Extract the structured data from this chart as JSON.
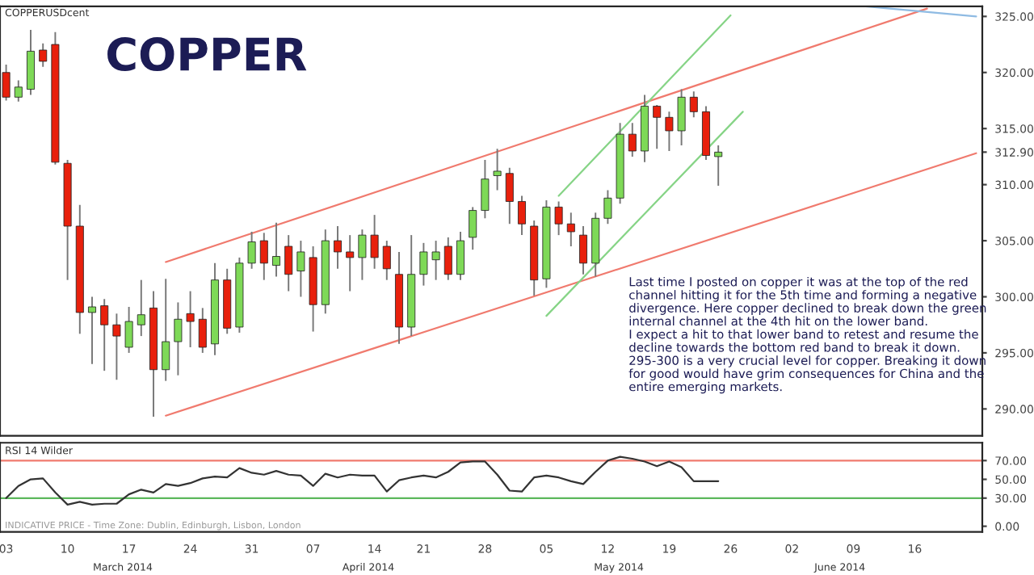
{
  "chart_data": [
    {
      "type": "candlestick",
      "title": "COPPER",
      "tick_labels": "y",
      "categories": [
        "03",
        null,
        null,
        null,
        null,
        "10",
        null,
        null,
        null,
        null,
        "17",
        null,
        null,
        null,
        null,
        "24",
        null,
        null,
        null,
        null,
        "31",
        null,
        null,
        null,
        null,
        "07",
        null,
        null,
        null,
        null,
        "14",
        null,
        null,
        null,
        "21",
        null,
        null,
        null,
        null,
        "28",
        null,
        null,
        null,
        null,
        "05",
        null,
        null,
        null,
        null,
        "12",
        null,
        null,
        null,
        null,
        "19",
        null,
        null,
        null,
        null,
        "26",
        null,
        null,
        null,
        null,
        "02",
        null,
        null,
        null,
        null,
        "09",
        null,
        null,
        null,
        null,
        "16",
        null,
        null,
        null,
        null,
        null
      ],
      "ohlc": [
        [
          320.0,
          320.7,
          317.5,
          317.8
        ],
        [
          317.8,
          319.3,
          317.4,
          318.7
        ],
        [
          318.5,
          323.8,
          318.0,
          321.9
        ],
        [
          322.0,
          322.6,
          320.5,
          321.0
        ],
        [
          322.5,
          323.6,
          311.8,
          312.0
        ],
        [
          311.9,
          312.2,
          301.5,
          306.3
        ],
        [
          306.3,
          308.2,
          296.7,
          298.6
        ],
        [
          298.6,
          300.0,
          294.0,
          299.1
        ],
        [
          299.2,
          299.8,
          293.4,
          297.5
        ],
        [
          297.5,
          298.5,
          292.6,
          296.5
        ],
        [
          295.5,
          299.1,
          295.0,
          297.8
        ],
        [
          297.5,
          301.5,
          296.5,
          298.4
        ],
        [
          299.0,
          300.5,
          289.3,
          293.5
        ],
        [
          293.5,
          301.6,
          292.5,
          296.0
        ],
        [
          296.0,
          299.5,
          293.0,
          298.0
        ],
        [
          298.5,
          300.5,
          295.5,
          297.8
        ],
        [
          298.0,
          299.0,
          295.0,
          295.5
        ],
        [
          295.8,
          303.0,
          294.8,
          301.5
        ],
        [
          301.5,
          302.5,
          296.7,
          297.2
        ],
        [
          297.3,
          303.5,
          296.8,
          303.0
        ],
        [
          303.0,
          305.8,
          302.5,
          304.9
        ],
        [
          305.0,
          305.7,
          301.5,
          303.0
        ],
        [
          302.8,
          306.6,
          301.8,
          303.6
        ],
        [
          304.5,
          305.5,
          300.5,
          302.0
        ],
        [
          302.3,
          305.0,
          300.0,
          304.0
        ],
        [
          303.5,
          304.5,
          296.9,
          299.3
        ],
        [
          299.3,
          306.0,
          298.5,
          305.0
        ],
        [
          305.0,
          306.3,
          302.5,
          304.0
        ],
        [
          304.0,
          305.5,
          300.5,
          303.5
        ],
        [
          303.5,
          306.0,
          301.5,
          305.5
        ],
        [
          305.5,
          307.3,
          302.5,
          303.5
        ],
        [
          304.5,
          305.0,
          301.5,
          302.5
        ],
        [
          302.0,
          304.0,
          295.8,
          297.3
        ],
        [
          297.3,
          305.5,
          296.5,
          302.0
        ],
        [
          302.0,
          304.8,
          301.0,
          304.0
        ],
        [
          303.3,
          305.0,
          301.5,
          304.0
        ],
        [
          304.5,
          305.3,
          301.5,
          302.0
        ],
        [
          302.0,
          305.8,
          301.5,
          305.0
        ],
        [
          305.3,
          308.0,
          304.2,
          307.7
        ],
        [
          307.7,
          312.2,
          307.0,
          310.5
        ],
        [
          310.8,
          313.2,
          309.5,
          311.2
        ],
        [
          311.0,
          311.5,
          306.5,
          308.5
        ],
        [
          308.5,
          309.0,
          305.5,
          306.5
        ],
        [
          306.3,
          306.8,
          300.1,
          301.5
        ],
        [
          301.6,
          308.6,
          300.8,
          308.0
        ],
        [
          308.0,
          308.5,
          305.5,
          306.5
        ],
        [
          306.5,
          307.5,
          304.5,
          305.8
        ],
        [
          305.5,
          306.3,
          302.0,
          303.0
        ],
        [
          303.0,
          307.5,
          301.8,
          307.0
        ],
        [
          307.0,
          309.5,
          306.5,
          308.8
        ],
        [
          308.8,
          315.5,
          308.3,
          314.5
        ],
        [
          314.5,
          315.5,
          312.5,
          313.0
        ],
        [
          313.0,
          318.0,
          312.0,
          317.0
        ],
        [
          317.0,
          317.1,
          313.2,
          316.0
        ],
        [
          316.0,
          316.5,
          313.0,
          314.8
        ],
        [
          314.8,
          318.5,
          313.5,
          317.8
        ],
        [
          317.8,
          318.3,
          316.0,
          316.5
        ],
        [
          316.5,
          317.0,
          312.2,
          312.6
        ],
        [
          312.5,
          313.5,
          309.9,
          312.9
        ],
        null,
        null,
        null,
        null,
        null,
        null,
        null,
        null,
        null,
        null,
        null,
        null,
        null,
        null,
        null,
        null,
        null,
        null,
        null,
        null,
        null
      ],
      "series": [
        {
          "type": "line",
          "color": "#f07a6e",
          "values": [
            null,
            null,
            null,
            null,
            null,
            null,
            null,
            null,
            null,
            null,
            null,
            null,
            null,
            303.1,
            null,
            null,
            null,
            null,
            null,
            null,
            null,
            null,
            null,
            null,
            null,
            null,
            null,
            null,
            null,
            null,
            null,
            null,
            null,
            null,
            null,
            null,
            null,
            null,
            null,
            null,
            null,
            null,
            null,
            null,
            null,
            null,
            null,
            null,
            null,
            null,
            null,
            null,
            null,
            null,
            null,
            null,
            null,
            null,
            null,
            null,
            null,
            null,
            null,
            null,
            null,
            null,
            null,
            null,
            null,
            null,
            null,
            null,
            null,
            null,
            null,
            325.7,
            null,
            null,
            null,
            null
          ]
        },
        {
          "type": "line",
          "color": "#f07a6e",
          "values": [
            null,
            null,
            null,
            null,
            null,
            null,
            null,
            null,
            null,
            null,
            null,
            null,
            null,
            289.4,
            null,
            null,
            null,
            null,
            null,
            null,
            null,
            null,
            null,
            null,
            null,
            null,
            null,
            null,
            null,
            null,
            null,
            null,
            null,
            null,
            null,
            null,
            null,
            null,
            null,
            null,
            null,
            null,
            null,
            null,
            null,
            null,
            null,
            null,
            null,
            null,
            null,
            null,
            null,
            null,
            null,
            null,
            null,
            null,
            null,
            null,
            null,
            null,
            null,
            null,
            null,
            null,
            null,
            null,
            null,
            null,
            null,
            null,
            null,
            null,
            null,
            null,
            null,
            null,
            null,
            312.8
          ]
        },
        {
          "type": "line",
          "color": "#86d486",
          "values": [
            null,
            null,
            null,
            null,
            null,
            null,
            null,
            null,
            null,
            null,
            null,
            null,
            null,
            null,
            null,
            null,
            null,
            null,
            null,
            null,
            null,
            null,
            null,
            null,
            null,
            null,
            null,
            null,
            null,
            null,
            null,
            null,
            null,
            null,
            null,
            null,
            null,
            null,
            null,
            null,
            null,
            null,
            null,
            null,
            null,
            309.0,
            null,
            null,
            null,
            null,
            null,
            null,
            null,
            null,
            null,
            null,
            null,
            null,
            null,
            325.1,
            null,
            null,
            null,
            null,
            null,
            null,
            null,
            null,
            null,
            null,
            null,
            null,
            null,
            null,
            null,
            null,
            null,
            null,
            null,
            null
          ]
        },
        {
          "type": "line",
          "color": "#86d486",
          "values": [
            null,
            null,
            null,
            null,
            null,
            null,
            null,
            null,
            null,
            null,
            null,
            null,
            null,
            null,
            null,
            null,
            null,
            null,
            null,
            null,
            null,
            null,
            null,
            null,
            null,
            null,
            null,
            null,
            null,
            null,
            null,
            null,
            null,
            null,
            null,
            null,
            null,
            null,
            null,
            null,
            null,
            null,
            null,
            null,
            298.3,
            null,
            null,
            null,
            null,
            null,
            null,
            null,
            null,
            null,
            null,
            null,
            null,
            null,
            null,
            null,
            316.5,
            null,
            null,
            null,
            null,
            null,
            null,
            null,
            null,
            null,
            null,
            null,
            null,
            null,
            null,
            null,
            null,
            null,
            null,
            null
          ]
        },
        {
          "type": "line",
          "color": "#8fbbe3",
          "values": [
            null,
            null,
            null,
            null,
            null,
            null,
            null,
            null,
            null,
            null,
            null,
            null,
            null,
            null,
            null,
            null,
            null,
            null,
            null,
            null,
            null,
            null,
            null,
            null,
            null,
            null,
            null,
            null,
            null,
            null,
            null,
            null,
            null,
            null,
            null,
            null,
            null,
            null,
            null,
            null,
            null,
            null,
            null,
            null,
            null,
            null,
            null,
            null,
            null,
            null,
            null,
            null,
            null,
            null,
            null,
            null,
            null,
            null,
            null,
            null,
            null,
            null,
            null,
            null,
            null,
            null,
            null,
            null,
            null,
            null,
            325.9,
            null,
            null,
            null,
            null,
            null,
            null,
            null,
            null,
            325.0
          ]
        }
      ],
      "ylim": [
        287.6,
        325.9
      ],
      "yticks": [
        {
          "value": 290,
          "label": "290.00"
        },
        {
          "value": 295,
          "label": "295.00"
        },
        {
          "value": 300,
          "label": "300.00"
        },
        {
          "value": 305,
          "label": "305.00"
        },
        {
          "value": 310,
          "label": "310.00"
        },
        {
          "value": 312.9,
          "label": "312.90"
        },
        {
          "value": 315,
          "label": "315.00"
        },
        {
          "value": 320,
          "label": "320.00"
        },
        {
          "value": 325,
          "label": "325.00"
        }
      ],
      "annotations": [
        "COPPERUSDcent",
        "Last time I posted on copper it was at the top of the red channel hitting it for the 5th time and forming a negative divergence. Here copper declined to break down the green internal channel at the 4th hit on the lower band.\nI expect a hit to that lower band to retest and resume the decline towards the bottom red band to break it down.\n295-300 is a very crucial level for copper. Breaking it down for good would have grim consequences for China and the entire emerging markets."
      ]
    },
    {
      "type": "line",
      "title": "RSI 14 Wilder",
      "categories": [
        "03",
        null,
        null,
        null,
        null,
        "10",
        null,
        null,
        null,
        null,
        "17",
        null,
        null,
        null,
        null,
        "24",
        null,
        null,
        null,
        null,
        "31",
        null,
        null,
        null,
        null,
        "07",
        null,
        null,
        null,
        null,
        "14",
        null,
        null,
        null,
        "21",
        null,
        null,
        null,
        null,
        "28",
        null,
        null,
        null,
        null,
        "05",
        null,
        null,
        null,
        null,
        "12",
        null,
        null,
        null,
        null,
        "19",
        null,
        null,
        null,
        null,
        "26",
        null,
        null,
        null,
        null,
        "02",
        null,
        null,
        null,
        null,
        "09",
        null,
        null,
        null,
        null,
        "16",
        null,
        null,
        null,
        null,
        null
      ],
      "series": [
        {
          "color": "#333333",
          "values": [
            30,
            43,
            50,
            51,
            36,
            23,
            26,
            23,
            24,
            24,
            34,
            39,
            36,
            45,
            43,
            46,
            51,
            53,
            52,
            62,
            57,
            55,
            59,
            55,
            54,
            43,
            56,
            52,
            55,
            54,
            54,
            37,
            49,
            52,
            54,
            52,
            58,
            68,
            69,
            69,
            55,
            38,
            37,
            52,
            54,
            52,
            48,
            45,
            58,
            70,
            74,
            72,
            69,
            64,
            69,
            63,
            48,
            48,
            48,
            null,
            null,
            null,
            null,
            null,
            null,
            null,
            null,
            null,
            null,
            null,
            null,
            null,
            null,
            null,
            null,
            null,
            null,
            null,
            null,
            null
          ]
        }
      ],
      "ylim": [
        -6,
        89
      ],
      "yticks": [
        {
          "value": 0,
          "label": "0.00"
        },
        {
          "value": 30,
          "label": "30.00"
        },
        {
          "value": 50,
          "label": "50.00"
        },
        {
          "value": 70,
          "label": "70.00"
        }
      ],
      "ref_lines": [
        {
          "axis": "y",
          "value": 70,
          "color": "#f07a6e"
        },
        {
          "axis": "y",
          "value": 30,
          "color": "#5cb85c"
        }
      ],
      "annotations": [
        "INDICATIVE PRICE - Time Zone: Dublin, Edinburgh, Lisbon, London",
        "March 2014",
        "April 2014",
        "May 2014",
        "June 2014"
      ]
    }
  ]
}
